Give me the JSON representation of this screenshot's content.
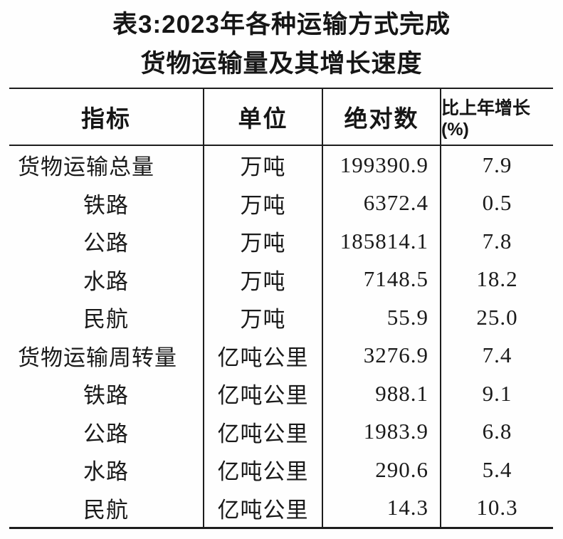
{
  "title": {
    "line1": "表3:2023年各种运输方式完成",
    "line2": "货物运输量及其增长速度"
  },
  "table": {
    "headers": {
      "indicator": "指标",
      "unit": "单位",
      "absolute": "绝对数",
      "growth": "比上年增长(%)"
    },
    "rows": [
      {
        "indicator": "货物运输总量",
        "unit": "万吨",
        "absolute": "199390.9",
        "growth": "7.9"
      },
      {
        "indicator": "铁路",
        "unit": "万吨",
        "absolute": "6372.4",
        "growth": "0.5"
      },
      {
        "indicator": "公路",
        "unit": "万吨",
        "absolute": "185814.1",
        "growth": "7.8"
      },
      {
        "indicator": "水路",
        "unit": "万吨",
        "absolute": "7148.5",
        "growth": "18.2"
      },
      {
        "indicator": "民航",
        "unit": "万吨",
        "absolute": "55.9",
        "growth": "25.0"
      },
      {
        "indicator": "货物运输周转量",
        "unit": "亿吨公里",
        "absolute": "3276.9",
        "growth": "7.4"
      },
      {
        "indicator": "铁路",
        "unit": "亿吨公里",
        "absolute": "988.1",
        "growth": "9.1"
      },
      {
        "indicator": "公路",
        "unit": "亿吨公里",
        "absolute": "1983.9",
        "growth": "6.8"
      },
      {
        "indicator": "水路",
        "unit": "亿吨公里",
        "absolute": "290.6",
        "growth": "5.4"
      },
      {
        "indicator": "民航",
        "unit": "亿吨公里",
        "absolute": "14.3",
        "growth": "10.3"
      }
    ]
  },
  "chart_data": {
    "type": "table",
    "title": "表3:2023年各种运输方式完成货物运输量及其增长速度",
    "columns": [
      "指标",
      "单位",
      "绝对数",
      "比上年增长(%)"
    ],
    "rows": [
      [
        "货物运输总量",
        "万吨",
        199390.9,
        7.9
      ],
      [
        "铁路",
        "万吨",
        6372.4,
        0.5
      ],
      [
        "公路",
        "万吨",
        185814.1,
        7.8
      ],
      [
        "水路",
        "万吨",
        7148.5,
        18.2
      ],
      [
        "民航",
        "万吨",
        55.9,
        25.0
      ],
      [
        "货物运输周转量",
        "亿吨公里",
        3276.9,
        7.4
      ],
      [
        "铁路",
        "亿吨公里",
        988.1,
        9.1
      ],
      [
        "公路",
        "亿吨公里",
        1983.9,
        6.8
      ],
      [
        "水路",
        "亿吨公里",
        290.6,
        5.4
      ],
      [
        "民航",
        "亿吨公里",
        14.3,
        10.3
      ]
    ]
  },
  "colors": {
    "background": "#fefefe",
    "text": "#1a1a1a",
    "rule": "#1d1d1d"
  }
}
